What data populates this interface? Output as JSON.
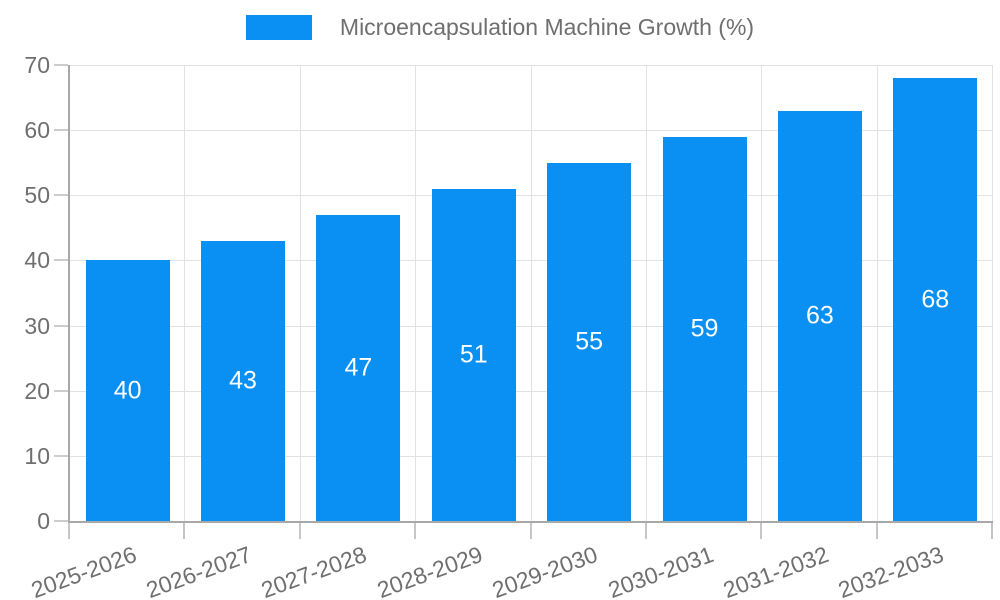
{
  "legend": {
    "label": "Microencapsulation Machine Growth (%)"
  },
  "chart_data": {
    "type": "bar",
    "title": "Microencapsulation Machine Growth (%)",
    "categories": [
      "2025-2026",
      "2026-2027",
      "2027-2028",
      "2028-2029",
      "2029-2030",
      "2030-2031",
      "2031-2032",
      "2032-2033"
    ],
    "values": [
      40,
      43,
      47,
      51,
      55,
      59,
      63,
      68
    ],
    "xlabel": "",
    "ylabel": "",
    "ylim": [
      0,
      70
    ],
    "y_ticks": [
      0,
      10,
      20,
      30,
      40,
      50,
      60,
      70
    ],
    "grid": true,
    "legend_position": "top",
    "colors": {
      "bar": "#0a8ff2",
      "bar_value_text": "#ffffff",
      "axis_text": "#6f6f6f",
      "grid_line": "#e2e2e2",
      "axis_line": "#a8a8a8",
      "tick_mark": "#c6c6c6"
    }
  }
}
